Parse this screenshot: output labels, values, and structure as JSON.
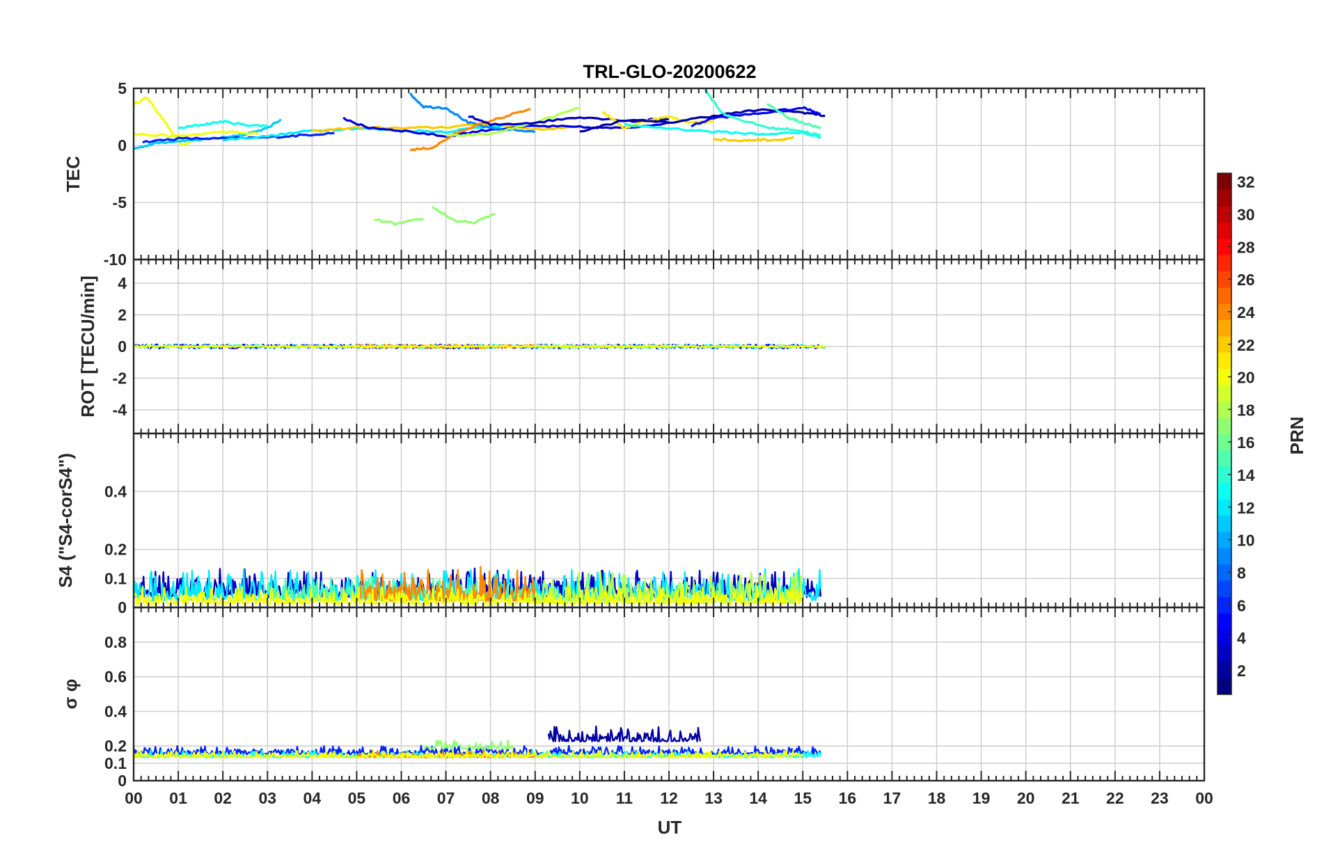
{
  "chart_data": {
    "type": "line",
    "title": "TRL-GLO-20200622",
    "xlabel": "UT",
    "x_ticks": [
      "00",
      "01",
      "02",
      "03",
      "04",
      "05",
      "06",
      "07",
      "08",
      "09",
      "10",
      "11",
      "12",
      "13",
      "14",
      "15",
      "16",
      "17",
      "18",
      "19",
      "20",
      "21",
      "22",
      "23",
      "00"
    ],
    "xlim": [
      0,
      24
    ],
    "colorbar": {
      "label": "PRN",
      "range": [
        1,
        32
      ],
      "ticks": [
        "2",
        "4",
        "6",
        "8",
        "10",
        "12",
        "14",
        "16",
        "18",
        "20",
        "22",
        "24",
        "26",
        "28",
        "30",
        "32"
      ]
    },
    "panels": [
      {
        "name": "tec",
        "ylabel": "TEC",
        "ylim": [
          -10,
          5
        ],
        "y_ticks": [
          "5",
          "0",
          "-5",
          "-10"
        ],
        "series": [
          {
            "prn": 20,
            "x": [
              0.0,
              0.3,
              0.6,
              0.9,
              1.1,
              1.4
            ],
            "y": [
              3.6,
              4.2,
              2.6,
              0.9,
              0.0,
              0.6
            ]
          },
          {
            "prn": 11,
            "x": [
              0.0,
              0.5,
              1.0,
              1.5,
              2.0,
              2.5,
              3.0,
              3.3
            ],
            "y": [
              -0.3,
              0.2,
              0.4,
              0.5,
              0.7,
              1.0,
              1.5,
              2.3
            ]
          },
          {
            "prn": 6,
            "x": [
              0.2,
              1.0,
              2.0,
              3.0,
              3.8,
              4.5
            ],
            "y": [
              0.3,
              0.6,
              0.6,
              0.7,
              0.9,
              1.1
            ]
          },
          {
            "prn": 20,
            "x": [
              0.0,
              1.0,
              2.0,
              2.8
            ],
            "y": [
              1.0,
              0.8,
              1.2,
              1.0
            ]
          },
          {
            "prn": 13,
            "x": [
              1.0,
              1.5,
              2.0,
              2.5,
              3.0
            ],
            "y": [
              1.5,
              1.8,
              2.1,
              1.8,
              1.7
            ]
          },
          {
            "prn": 12,
            "x": [
              2.0,
              3.0,
              4.0,
              5.0,
              6.0,
              7.0,
              8.0,
              9.0
            ],
            "y": [
              0.5,
              0.8,
              1.3,
              1.5,
              1.3,
              1.2,
              1.7,
              1.8
            ]
          },
          {
            "prn": 22,
            "x": [
              4.0,
              5.0,
              6.0,
              7.0,
              8.0,
              9.0,
              10.0
            ],
            "y": [
              1.2,
              1.6,
              1.5,
              1.6,
              1.9,
              1.4,
              1.6
            ]
          },
          {
            "prn": 4,
            "x": [
              4.7,
              5.2,
              6.0,
              7.0,
              8.0,
              9.0,
              10.0,
              11.0,
              12.0
            ],
            "y": [
              2.4,
              1.6,
              1.3,
              0.8,
              1.4,
              1.7,
              1.6,
              1.5,
              2.0
            ]
          },
          {
            "prn": 9,
            "x": [
              6.2,
              6.5,
              7.0,
              7.5,
              8.0,
              9.0
            ],
            "y": [
              4.5,
              3.4,
              3.3,
              2.0,
              1.5,
              1.2
            ]
          },
          {
            "prn": 24,
            "x": [
              6.2,
              6.7,
              7.2,
              7.7,
              8.3,
              8.9
            ],
            "y": [
              -0.4,
              -0.2,
              1.0,
              1.8,
              2.5,
              3.2
            ]
          },
          {
            "prn": 18,
            "x": [
              7.0,
              8.0,
              9.0,
              10.0
            ],
            "y": [
              0.8,
              1.0,
              2.0,
              3.3
            ]
          },
          {
            "prn": 17,
            "x": [
              5.4,
              5.9,
              6.5
            ],
            "y": [
              -6.5,
              -6.9,
              -6.4
            ]
          },
          {
            "prn": 17,
            "x": [
              6.7,
              7.2,
              7.6,
              8.1
            ],
            "y": [
              -5.4,
              -6.6,
              -6.8,
              -6.0
            ]
          },
          {
            "prn": 3,
            "x": [
              7.5,
              8.0,
              9.0,
              10.0,
              11.0,
              12.0
            ],
            "y": [
              2.6,
              1.8,
              2.0,
              2.5,
              2.2,
              2.3
            ]
          },
          {
            "prn": 21,
            "x": [
              10.5,
              11.0,
              11.5,
              12.0,
              12.5,
              13.0
            ],
            "y": [
              3.0,
              1.5,
              2.2,
              2.5,
              2.0,
              2.1
            ]
          },
          {
            "prn": 2,
            "x": [
              10.0,
              11.0,
              12.0,
              13.0,
              14.0,
              15.0,
              15.5
            ],
            "y": [
              1.2,
              2.2,
              2.0,
              2.6,
              3.1,
              2.9,
              2.6
            ]
          },
          {
            "prn": 5,
            "x": [
              12.5,
              13.0,
              14.0,
              15.0,
              15.4
            ],
            "y": [
              1.7,
              2.4,
              2.8,
              3.3,
              2.8
            ]
          },
          {
            "prn": 14,
            "x": [
              12.8,
              13.2,
              13.8,
              14.3,
              14.8,
              15.4
            ],
            "y": [
              4.9,
              2.8,
              2.0,
              1.5,
              1.4,
              0.9
            ]
          },
          {
            "prn": 15,
            "x": [
              14.2,
              14.7,
              15.0,
              15.4
            ],
            "y": [
              3.6,
              2.4,
              2.0,
              1.5
            ]
          },
          {
            "prn": 13,
            "x": [
              11.0,
              12.0,
              13.0,
              14.0,
              15.0,
              15.4
            ],
            "y": [
              1.8,
              1.5,
              1.2,
              1.0,
              1.1,
              0.7
            ]
          },
          {
            "prn": 22,
            "x": [
              13.0,
              13.6,
              14.0,
              14.5,
              14.8
            ],
            "y": [
              0.6,
              0.4,
              0.5,
              0.5,
              0.7
            ]
          }
        ]
      },
      {
        "name": "rot",
        "ylabel": "ROT [TECU/min]",
        "ylim": [
          -5.5,
          5.5
        ],
        "y_ticks": [
          "4",
          "2",
          "0",
          "-2",
          "-4"
        ],
        "series": [
          {
            "prn": 4,
            "x": [
              0.0,
              15.5
            ],
            "y": [
              0.0,
              0.0
            ],
            "noise": 0.13
          },
          {
            "prn": 12,
            "x": [
              0.0,
              15.5
            ],
            "y": [
              0.0,
              0.0
            ],
            "noise": 0.1
          },
          {
            "prn": 24,
            "x": [
              5.0,
              9.0
            ],
            "y": [
              0.0,
              0.0
            ],
            "noise": 0.12
          },
          {
            "prn": 17,
            "x": [
              9.0,
              12.0
            ],
            "y": [
              0.0,
              0.0
            ],
            "noise": 0.1
          },
          {
            "prn": 20,
            "x": [
              0.0,
              15.5
            ],
            "y": [
              0.0,
              0.0
            ],
            "noise": 0.07
          }
        ]
      },
      {
        "name": "s4",
        "ylabel": "S4 (\"S4-corS4\")",
        "ylim": [
          0,
          0.6
        ],
        "y_ticks": [
          "0.4",
          "0.2",
          "0.1",
          "0"
        ],
        "series": [
          {
            "prn": 3,
            "x": [
              0.0,
              15.4
            ],
            "y": [
              0.05,
              0.05
            ],
            "noise": 0.1
          },
          {
            "prn": 12,
            "x": [
              0.0,
              15.4
            ],
            "y": [
              0.04,
              0.04
            ],
            "noise": 0.11
          },
          {
            "prn": 15,
            "x": [
              3.0,
              9.0
            ],
            "y": [
              0.04,
              0.04
            ],
            "noise": 0.08
          },
          {
            "prn": 24,
            "x": [
              5.0,
              9.0
            ],
            "y": [
              0.04,
              0.04
            ],
            "noise": 0.12
          },
          {
            "prn": 18,
            "x": [
              9.0,
              15.0
            ],
            "y": [
              0.03,
              0.03
            ],
            "noise": 0.11
          },
          {
            "prn": 20,
            "x": [
              0.0,
              15.0
            ],
            "y": [
              0.02,
              0.02
            ],
            "noise": 0.06
          }
        ]
      },
      {
        "name": "sigma",
        "ylabel": "σ φ",
        "ylim": [
          0,
          1
        ],
        "y_ticks": [
          "0.8",
          "0.6",
          "0.4",
          "0.2",
          "0.1",
          "0"
        ],
        "series": [
          {
            "prn": 6,
            "x": [
              0.0,
              15.4
            ],
            "y": [
              0.16,
              0.16
            ],
            "noise": 0.05
          },
          {
            "prn": 2,
            "x": [
              9.3,
              12.7
            ],
            "y": [
              0.24,
              0.24
            ],
            "noise": 0.09
          },
          {
            "prn": 13,
            "x": [
              0.0,
              15.4
            ],
            "y": [
              0.14,
              0.14
            ],
            "noise": 0.04
          },
          {
            "prn": 17,
            "x": [
              6.5,
              8.5
            ],
            "y": [
              0.19,
              0.19
            ],
            "noise": 0.05
          },
          {
            "prn": 24,
            "x": [
              5.0,
              9.0
            ],
            "y": [
              0.14,
              0.14
            ],
            "noise": 0.04
          },
          {
            "prn": 20,
            "x": [
              0.0,
              15.0
            ],
            "y": [
              0.14,
              0.14
            ],
            "noise": 0.04
          }
        ]
      }
    ]
  }
}
